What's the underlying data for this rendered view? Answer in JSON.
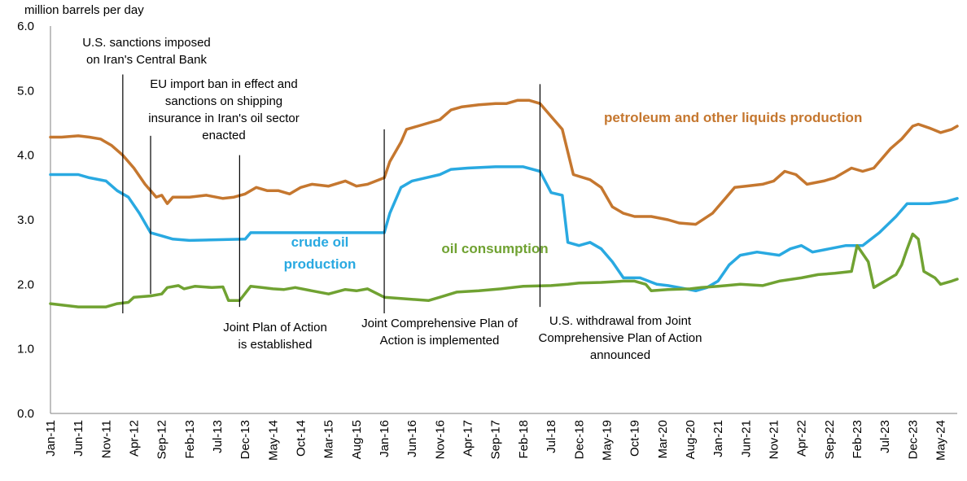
{
  "chart_data": {
    "type": "line",
    "ylabel": "million barrels per day",
    "ylim": [
      0,
      6
    ],
    "yticks": [
      "0.0",
      "1.0",
      "2.0",
      "3.0",
      "4.0",
      "5.0",
      "6.0"
    ],
    "x_ticks": [
      "Jan-11",
      "Jun-11",
      "Nov-11",
      "Apr-12",
      "Sep-12",
      "Feb-13",
      "Jul-13",
      "Dec-13",
      "May-14",
      "Oct-14",
      "Mar-15",
      "Aug-15",
      "Jan-16",
      "Jun-16",
      "Nov-16",
      "Apr-17",
      "Sep-17",
      "Feb-18",
      "Jul-18",
      "Dec-18",
      "May-19",
      "Oct-19",
      "Mar-20",
      "Aug-20",
      "Jan-21",
      "Jun-21",
      "Nov-21",
      "Apr-22",
      "Sep-22",
      "Feb-23",
      "Jul-23",
      "Dec-23",
      "May-24"
    ],
    "x_range": [
      "Jan-11",
      "Aug-24"
    ],
    "series": [
      {
        "name": "petroleum and other liquids production",
        "color": "#C5772F",
        "points": [
          [
            "Jan-11",
            4.28
          ],
          [
            "Mar-11",
            4.28
          ],
          [
            "Jun-11",
            4.3
          ],
          [
            "Aug-11",
            4.28
          ],
          [
            "Oct-11",
            4.25
          ],
          [
            "Dec-11",
            4.15
          ],
          [
            "Feb-12",
            4.0
          ],
          [
            "Apr-12",
            3.8
          ],
          [
            "Jun-12",
            3.55
          ],
          [
            "Aug-12",
            3.35
          ],
          [
            "Sep-12",
            3.38
          ],
          [
            "Oct-12",
            3.25
          ],
          [
            "Nov-12",
            3.35
          ],
          [
            "Feb-13",
            3.35
          ],
          [
            "May-13",
            3.38
          ],
          [
            "Aug-13",
            3.33
          ],
          [
            "Oct-13",
            3.35
          ],
          [
            "Dec-13",
            3.4
          ],
          [
            "Feb-14",
            3.5
          ],
          [
            "Apr-14",
            3.45
          ],
          [
            "Jun-14",
            3.45
          ],
          [
            "Aug-14",
            3.4
          ],
          [
            "Oct-14",
            3.5
          ],
          [
            "Dec-14",
            3.55
          ],
          [
            "Mar-15",
            3.52
          ],
          [
            "Jun-15",
            3.6
          ],
          [
            "Aug-15",
            3.52
          ],
          [
            "Oct-15",
            3.55
          ],
          [
            "Jan-16",
            3.65
          ],
          [
            "Feb-16",
            3.9
          ],
          [
            "Apr-16",
            4.2
          ],
          [
            "May-16",
            4.4
          ],
          [
            "Jul-16",
            4.45
          ],
          [
            "Sep-16",
            4.5
          ],
          [
            "Nov-16",
            4.55
          ],
          [
            "Jan-17",
            4.7
          ],
          [
            "Mar-17",
            4.75
          ],
          [
            "Jun-17",
            4.78
          ],
          [
            "Sep-17",
            4.8
          ],
          [
            "Nov-17",
            4.8
          ],
          [
            "Jan-18",
            4.85
          ],
          [
            "Mar-18",
            4.85
          ],
          [
            "May-18",
            4.8
          ],
          [
            "Jul-18",
            4.6
          ],
          [
            "Sep-18",
            4.4
          ],
          [
            "Nov-18",
            3.7
          ],
          [
            "Feb-19",
            3.62
          ],
          [
            "Apr-19",
            3.5
          ],
          [
            "Jun-19",
            3.2
          ],
          [
            "Aug-19",
            3.1
          ],
          [
            "Oct-19",
            3.05
          ],
          [
            "Jan-20",
            3.05
          ],
          [
            "Apr-20",
            3.0
          ],
          [
            "Jun-20",
            2.95
          ],
          [
            "Sep-20",
            2.93
          ],
          [
            "Dec-20",
            3.1
          ],
          [
            "Feb-21",
            3.3
          ],
          [
            "Apr-21",
            3.5
          ],
          [
            "Jun-21",
            3.52
          ],
          [
            "Sep-21",
            3.55
          ],
          [
            "Nov-21",
            3.6
          ],
          [
            "Jan-22",
            3.75
          ],
          [
            "Mar-22",
            3.7
          ],
          [
            "May-22",
            3.55
          ],
          [
            "Aug-22",
            3.6
          ],
          [
            "Oct-22",
            3.65
          ],
          [
            "Jan-23",
            3.8
          ],
          [
            "Mar-23",
            3.75
          ],
          [
            "May-23",
            3.8
          ],
          [
            "Aug-23",
            4.1
          ],
          [
            "Oct-23",
            4.25
          ],
          [
            "Dec-23",
            4.45
          ],
          [
            "Jan-24",
            4.48
          ],
          [
            "Mar-24",
            4.42
          ],
          [
            "May-24",
            4.35
          ],
          [
            "Jul-24",
            4.4
          ],
          [
            "Aug-24",
            4.45
          ]
        ]
      },
      {
        "name": "crude oil production",
        "color": "#29A9E1",
        "points": [
          [
            "Jan-11",
            3.7
          ],
          [
            "Jun-11",
            3.7
          ],
          [
            "Aug-11",
            3.65
          ],
          [
            "Nov-11",
            3.6
          ],
          [
            "Jan-12",
            3.45
          ],
          [
            "Mar-12",
            3.35
          ],
          [
            "May-12",
            3.1
          ],
          [
            "Jul-12",
            2.8
          ],
          [
            "Sep-12",
            2.75
          ],
          [
            "Nov-12",
            2.7
          ],
          [
            "Feb-13",
            2.68
          ],
          [
            "Dec-13",
            2.7
          ],
          [
            "Jan-14",
            2.8
          ],
          [
            "Jan-16",
            2.8
          ],
          [
            "Feb-16",
            3.1
          ],
          [
            "Apr-16",
            3.5
          ],
          [
            "Jun-16",
            3.6
          ],
          [
            "Nov-16",
            3.7
          ],
          [
            "Jan-17",
            3.78
          ],
          [
            "Apr-17",
            3.8
          ],
          [
            "Sep-17",
            3.82
          ],
          [
            "Feb-18",
            3.82
          ],
          [
            "May-18",
            3.75
          ],
          [
            "Jul-18",
            3.42
          ],
          [
            "Sep-18",
            3.38
          ],
          [
            "Oct-18",
            2.65
          ],
          [
            "Dec-18",
            2.6
          ],
          [
            "Feb-19",
            2.65
          ],
          [
            "Apr-19",
            2.55
          ],
          [
            "Jun-19",
            2.35
          ],
          [
            "Aug-19",
            2.1
          ],
          [
            "Nov-19",
            2.1
          ],
          [
            "Feb-20",
            2.0
          ],
          [
            "Apr-20",
            1.98
          ],
          [
            "Jun-20",
            1.95
          ],
          [
            "Sep-20",
            1.9
          ],
          [
            "Nov-20",
            1.95
          ],
          [
            "Jan-21",
            2.05
          ],
          [
            "Mar-21",
            2.3
          ],
          [
            "May-21",
            2.45
          ],
          [
            "Aug-21",
            2.5
          ],
          [
            "Dec-21",
            2.45
          ],
          [
            "Feb-22",
            2.55
          ],
          [
            "Apr-22",
            2.6
          ],
          [
            "Jun-22",
            2.5
          ],
          [
            "Sep-22",
            2.55
          ],
          [
            "Dec-22",
            2.6
          ],
          [
            "Mar-23",
            2.6
          ],
          [
            "Jun-23",
            2.8
          ],
          [
            "Sep-23",
            3.05
          ],
          [
            "Nov-23",
            3.25
          ],
          [
            "Jan-24",
            3.25
          ],
          [
            "Mar-24",
            3.25
          ],
          [
            "Jun-24",
            3.28
          ],
          [
            "Aug-24",
            3.33
          ]
        ]
      },
      {
        "name": "oil consumption",
        "color": "#70A232",
        "points": [
          [
            "Jan-11",
            1.7
          ],
          [
            "Mar-11",
            1.68
          ],
          [
            "Jun-11",
            1.65
          ],
          [
            "Nov-11",
            1.65
          ],
          [
            "Jan-12",
            1.7
          ],
          [
            "Mar-12",
            1.72
          ],
          [
            "Apr-12",
            1.8
          ],
          [
            "Jul-12",
            1.82
          ],
          [
            "Sep-12",
            1.85
          ],
          [
            "Oct-12",
            1.95
          ],
          [
            "Dec-12",
            1.98
          ],
          [
            "Jan-13",
            1.93
          ],
          [
            "Mar-13",
            1.97
          ],
          [
            "Jun-13",
            1.95
          ],
          [
            "Aug-13",
            1.96
          ],
          [
            "Sep-13",
            1.75
          ],
          [
            "Nov-13",
            1.75
          ],
          [
            "Jan-14",
            1.97
          ],
          [
            "Mar-14",
            1.95
          ],
          [
            "May-14",
            1.93
          ],
          [
            "Jul-14",
            1.92
          ],
          [
            "Sep-14",
            1.95
          ],
          [
            "Dec-14",
            1.9
          ],
          [
            "Mar-15",
            1.85
          ],
          [
            "Jun-15",
            1.92
          ],
          [
            "Aug-15",
            1.9
          ],
          [
            "Oct-15",
            1.93
          ],
          [
            "Jan-16",
            1.8
          ],
          [
            "Apr-16",
            1.78
          ],
          [
            "Sep-16",
            1.75
          ],
          [
            "Nov-16",
            1.8
          ],
          [
            "Feb-17",
            1.88
          ],
          [
            "Jun-17",
            1.9
          ],
          [
            "Oct-17",
            1.93
          ],
          [
            "Feb-18",
            1.97
          ],
          [
            "Jul-18",
            1.98
          ],
          [
            "Oct-18",
            2.0
          ],
          [
            "Dec-18",
            2.02
          ],
          [
            "Apr-19",
            2.03
          ],
          [
            "Aug-19",
            2.05
          ],
          [
            "Oct-19",
            2.05
          ],
          [
            "Dec-19",
            2.0
          ],
          [
            "Jan-20",
            1.9
          ],
          [
            "Apr-20",
            1.92
          ],
          [
            "Aug-20",
            1.93
          ],
          [
            "Oct-20",
            1.95
          ],
          [
            "Jan-21",
            1.97
          ],
          [
            "May-21",
            2.0
          ],
          [
            "Sep-21",
            1.98
          ],
          [
            "Dec-21",
            2.05
          ],
          [
            "Apr-22",
            2.1
          ],
          [
            "Jul-22",
            2.15
          ],
          [
            "Oct-22",
            2.17
          ],
          [
            "Jan-23",
            2.2
          ],
          [
            "Feb-23",
            2.6
          ],
          [
            "Apr-23",
            2.35
          ],
          [
            "May-23",
            1.95
          ],
          [
            "Jul-23",
            2.05
          ],
          [
            "Sep-23",
            2.15
          ],
          [
            "Oct-23",
            2.3
          ],
          [
            "Nov-23",
            2.55
          ],
          [
            "Dec-23",
            2.78
          ],
          [
            "Jan-24",
            2.7
          ],
          [
            "Feb-24",
            2.2
          ],
          [
            "Apr-24",
            2.1
          ],
          [
            "May-24",
            2.0
          ],
          [
            "Jul-24",
            2.05
          ],
          [
            "Aug-24",
            2.08
          ]
        ]
      }
    ],
    "series_labels": {
      "petroleum": "petroleum and other liquids production",
      "crude_line1": "crude oil",
      "crude_line2": "production",
      "consumption": "oil consumption"
    },
    "events": [
      {
        "date": "Feb-12",
        "ymin": 1.55,
        "ymax": 5.25,
        "lines": [
          "U.S. sanctions imposed",
          "on Iran's Central Bank"
        ]
      },
      {
        "date": "Jul-12",
        "ymin": 1.85,
        "ymax": 4.3,
        "lines": [
          "EU import ban in effect and",
          "sanctions on shipping",
          "insurance in Iran's oil sector",
          "enacted"
        ]
      },
      {
        "date": "Nov-13",
        "ymin": 1.65,
        "ymax": 4.0,
        "lines": [
          "Joint Plan of Action",
          "is established"
        ]
      },
      {
        "date": "Jan-16",
        "ymin": 1.55,
        "ymax": 4.4,
        "lines": [
          "Joint Comprehensive Plan of",
          "Action is implemented"
        ]
      },
      {
        "date": "May-18",
        "ymin": 1.65,
        "ymax": 5.1,
        "lines": [
          "U.S. withdrawal from Joint",
          "Comprehensive Plan of Action",
          "announced"
        ]
      }
    ]
  }
}
